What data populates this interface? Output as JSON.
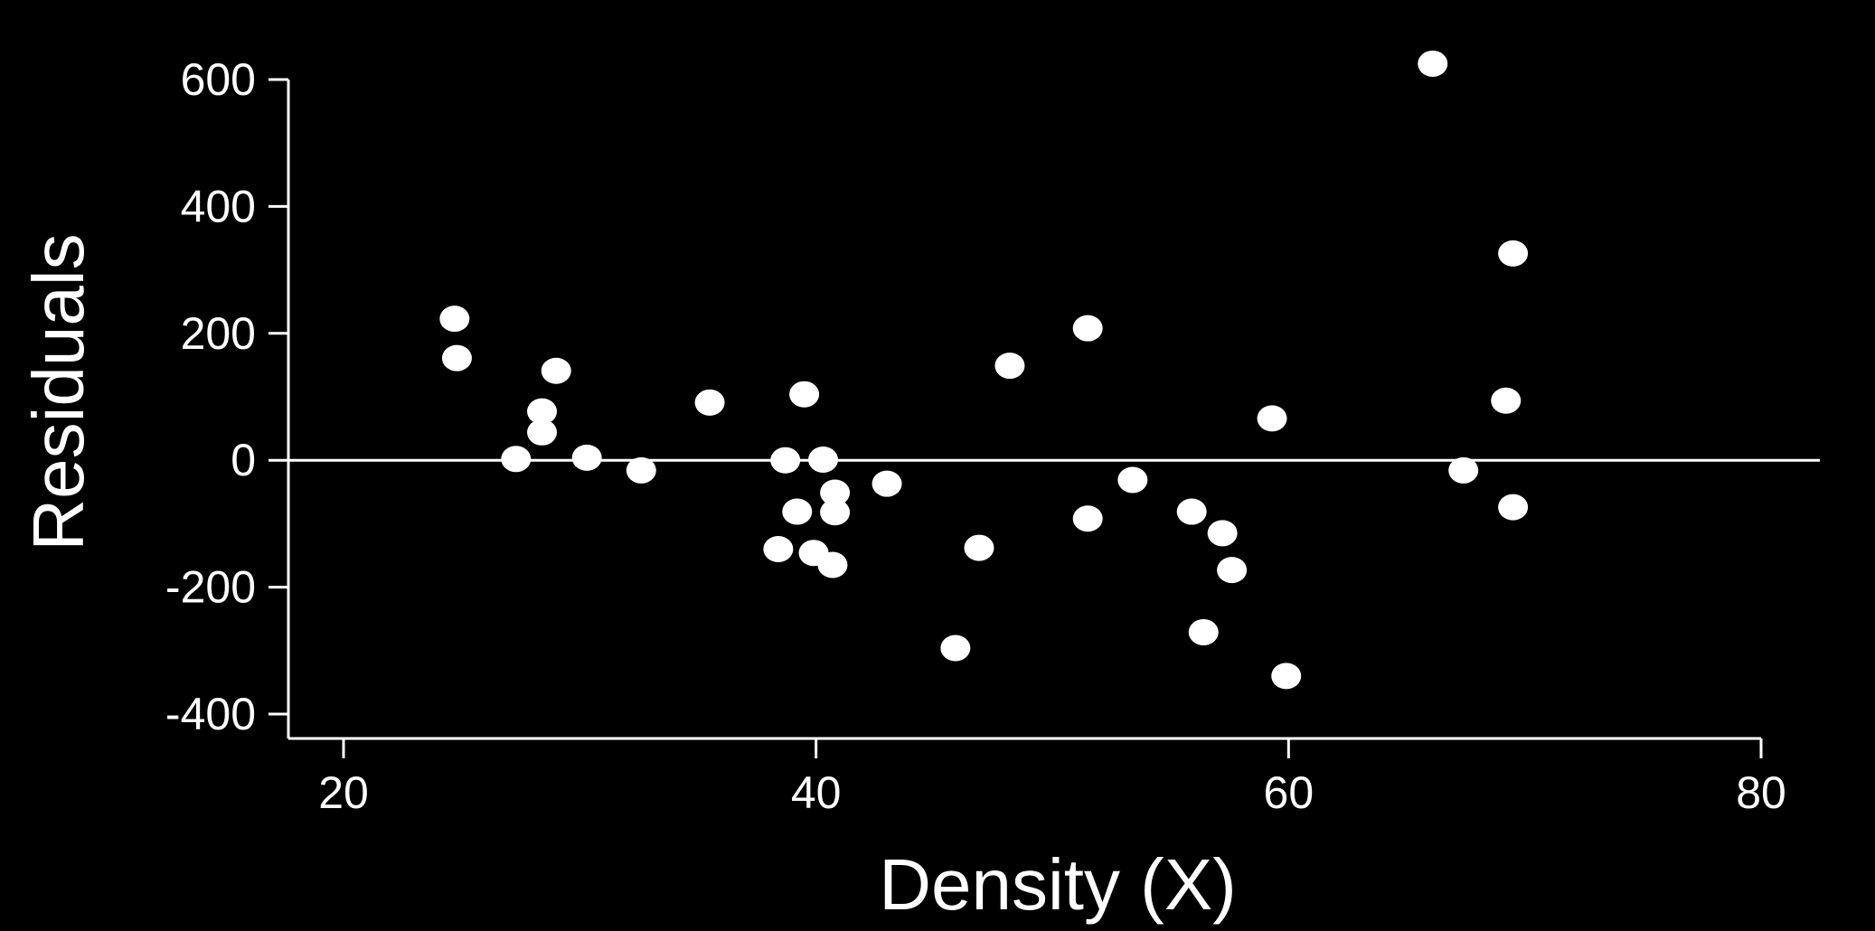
{
  "chart_data": {
    "type": "scatter",
    "title": "",
    "xlabel": "Density (X)",
    "ylabel": "Residuals",
    "xlim": [
      17.5,
      82
    ],
    "ylim": [
      -440,
      640
    ],
    "x_ticks": [
      20,
      40,
      60,
      80
    ],
    "y_ticks": [
      -400,
      -200,
      0,
      200,
      400,
      600
    ],
    "x_tick_labels": [
      "20",
      "40",
      "60",
      "80"
    ],
    "y_tick_labels": [
      "-400",
      "-200",
      "0",
      "200",
      "400",
      "600"
    ],
    "reference_line_y": 0,
    "grid": false,
    "point_color": "#ffffff",
    "background_color": "#000000",
    "points": [
      {
        "x": 24.7,
        "y": 223
      },
      {
        "x": 24.8,
        "y": 161
      },
      {
        "x": 27.3,
        "y": 2
      },
      {
        "x": 28.4,
        "y": 77
      },
      {
        "x": 28.4,
        "y": 44
      },
      {
        "x": 29.0,
        "y": 141
      },
      {
        "x": 30.3,
        "y": 4
      },
      {
        "x": 32.6,
        "y": -16
      },
      {
        "x": 35.5,
        "y": 91
      },
      {
        "x": 38.4,
        "y": -140
      },
      {
        "x": 38.7,
        "y": 0
      },
      {
        "x": 39.2,
        "y": -81
      },
      {
        "x": 39.5,
        "y": 104
      },
      {
        "x": 39.9,
        "y": -146
      },
      {
        "x": 40.3,
        "y": 1
      },
      {
        "x": 40.7,
        "y": -165
      },
      {
        "x": 40.8,
        "y": -51
      },
      {
        "x": 40.8,
        "y": -82
      },
      {
        "x": 43.0,
        "y": -37
      },
      {
        "x": 45.9,
        "y": -296
      },
      {
        "x": 46.9,
        "y": -138
      },
      {
        "x": 48.2,
        "y": 149
      },
      {
        "x": 51.5,
        "y": 208
      },
      {
        "x": 51.5,
        "y": -92
      },
      {
        "x": 53.4,
        "y": -31
      },
      {
        "x": 55.9,
        "y": -81
      },
      {
        "x": 56.4,
        "y": -271
      },
      {
        "x": 57.2,
        "y": -115
      },
      {
        "x": 57.6,
        "y": -173
      },
      {
        "x": 59.3,
        "y": 66
      },
      {
        "x": 59.9,
        "y": -340
      },
      {
        "x": 66.1,
        "y": 625
      },
      {
        "x": 67.4,
        "y": -16
      },
      {
        "x": 69.2,
        "y": 94
      },
      {
        "x": 69.5,
        "y": 326
      },
      {
        "x": 69.5,
        "y": -74
      }
    ]
  }
}
